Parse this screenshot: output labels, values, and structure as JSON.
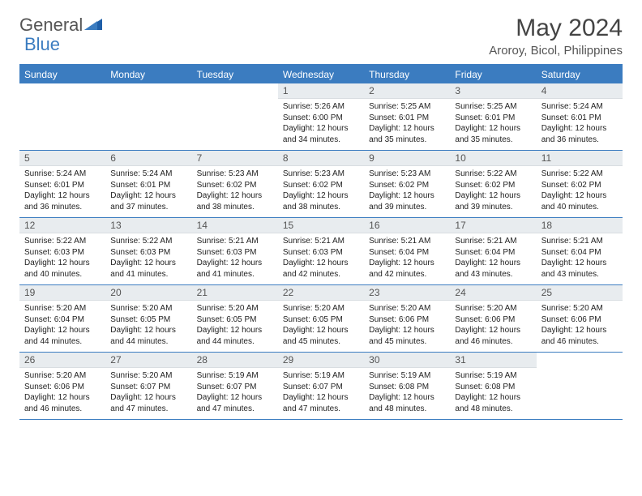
{
  "logo": {
    "text1": "General",
    "text2": "Blue"
  },
  "title": "May 2024",
  "location": "Aroroy, Bicol, Philippines",
  "weekdays": [
    "Sunday",
    "Monday",
    "Tuesday",
    "Wednesday",
    "Thursday",
    "Friday",
    "Saturday"
  ],
  "colors": {
    "accent": "#3b7cc0",
    "daynum_bg": "#e8ecef",
    "text": "#222222",
    "muted": "#555555",
    "white": "#ffffff"
  },
  "days": {
    "1": {
      "sunrise": "Sunrise: 5:26 AM",
      "sunset": "Sunset: 6:00 PM",
      "day1": "Daylight: 12 hours",
      "day2": "and 34 minutes."
    },
    "2": {
      "sunrise": "Sunrise: 5:25 AM",
      "sunset": "Sunset: 6:01 PM",
      "day1": "Daylight: 12 hours",
      "day2": "and 35 minutes."
    },
    "3": {
      "sunrise": "Sunrise: 5:25 AM",
      "sunset": "Sunset: 6:01 PM",
      "day1": "Daylight: 12 hours",
      "day2": "and 35 minutes."
    },
    "4": {
      "sunrise": "Sunrise: 5:24 AM",
      "sunset": "Sunset: 6:01 PM",
      "day1": "Daylight: 12 hours",
      "day2": "and 36 minutes."
    },
    "5": {
      "sunrise": "Sunrise: 5:24 AM",
      "sunset": "Sunset: 6:01 PM",
      "day1": "Daylight: 12 hours",
      "day2": "and 36 minutes."
    },
    "6": {
      "sunrise": "Sunrise: 5:24 AM",
      "sunset": "Sunset: 6:01 PM",
      "day1": "Daylight: 12 hours",
      "day2": "and 37 minutes."
    },
    "7": {
      "sunrise": "Sunrise: 5:23 AM",
      "sunset": "Sunset: 6:02 PM",
      "day1": "Daylight: 12 hours",
      "day2": "and 38 minutes."
    },
    "8": {
      "sunrise": "Sunrise: 5:23 AM",
      "sunset": "Sunset: 6:02 PM",
      "day1": "Daylight: 12 hours",
      "day2": "and 38 minutes."
    },
    "9": {
      "sunrise": "Sunrise: 5:23 AM",
      "sunset": "Sunset: 6:02 PM",
      "day1": "Daylight: 12 hours",
      "day2": "and 39 minutes."
    },
    "10": {
      "sunrise": "Sunrise: 5:22 AM",
      "sunset": "Sunset: 6:02 PM",
      "day1": "Daylight: 12 hours",
      "day2": "and 39 minutes."
    },
    "11": {
      "sunrise": "Sunrise: 5:22 AM",
      "sunset": "Sunset: 6:02 PM",
      "day1": "Daylight: 12 hours",
      "day2": "and 40 minutes."
    },
    "12": {
      "sunrise": "Sunrise: 5:22 AM",
      "sunset": "Sunset: 6:03 PM",
      "day1": "Daylight: 12 hours",
      "day2": "and 40 minutes."
    },
    "13": {
      "sunrise": "Sunrise: 5:22 AM",
      "sunset": "Sunset: 6:03 PM",
      "day1": "Daylight: 12 hours",
      "day2": "and 41 minutes."
    },
    "14": {
      "sunrise": "Sunrise: 5:21 AM",
      "sunset": "Sunset: 6:03 PM",
      "day1": "Daylight: 12 hours",
      "day2": "and 41 minutes."
    },
    "15": {
      "sunrise": "Sunrise: 5:21 AM",
      "sunset": "Sunset: 6:03 PM",
      "day1": "Daylight: 12 hours",
      "day2": "and 42 minutes."
    },
    "16": {
      "sunrise": "Sunrise: 5:21 AM",
      "sunset": "Sunset: 6:04 PM",
      "day1": "Daylight: 12 hours",
      "day2": "and 42 minutes."
    },
    "17": {
      "sunrise": "Sunrise: 5:21 AM",
      "sunset": "Sunset: 6:04 PM",
      "day1": "Daylight: 12 hours",
      "day2": "and 43 minutes."
    },
    "18": {
      "sunrise": "Sunrise: 5:21 AM",
      "sunset": "Sunset: 6:04 PM",
      "day1": "Daylight: 12 hours",
      "day2": "and 43 minutes."
    },
    "19": {
      "sunrise": "Sunrise: 5:20 AM",
      "sunset": "Sunset: 6:04 PM",
      "day1": "Daylight: 12 hours",
      "day2": "and 44 minutes."
    },
    "20": {
      "sunrise": "Sunrise: 5:20 AM",
      "sunset": "Sunset: 6:05 PM",
      "day1": "Daylight: 12 hours",
      "day2": "and 44 minutes."
    },
    "21": {
      "sunrise": "Sunrise: 5:20 AM",
      "sunset": "Sunset: 6:05 PM",
      "day1": "Daylight: 12 hours",
      "day2": "and 44 minutes."
    },
    "22": {
      "sunrise": "Sunrise: 5:20 AM",
      "sunset": "Sunset: 6:05 PM",
      "day1": "Daylight: 12 hours",
      "day2": "and 45 minutes."
    },
    "23": {
      "sunrise": "Sunrise: 5:20 AM",
      "sunset": "Sunset: 6:06 PM",
      "day1": "Daylight: 12 hours",
      "day2": "and 45 minutes."
    },
    "24": {
      "sunrise": "Sunrise: 5:20 AM",
      "sunset": "Sunset: 6:06 PM",
      "day1": "Daylight: 12 hours",
      "day2": "and 46 minutes."
    },
    "25": {
      "sunrise": "Sunrise: 5:20 AM",
      "sunset": "Sunset: 6:06 PM",
      "day1": "Daylight: 12 hours",
      "day2": "and 46 minutes."
    },
    "26": {
      "sunrise": "Sunrise: 5:20 AM",
      "sunset": "Sunset: 6:06 PM",
      "day1": "Daylight: 12 hours",
      "day2": "and 46 minutes."
    },
    "27": {
      "sunrise": "Sunrise: 5:20 AM",
      "sunset": "Sunset: 6:07 PM",
      "day1": "Daylight: 12 hours",
      "day2": "and 47 minutes."
    },
    "28": {
      "sunrise": "Sunrise: 5:19 AM",
      "sunset": "Sunset: 6:07 PM",
      "day1": "Daylight: 12 hours",
      "day2": "and 47 minutes."
    },
    "29": {
      "sunrise": "Sunrise: 5:19 AM",
      "sunset": "Sunset: 6:07 PM",
      "day1": "Daylight: 12 hours",
      "day2": "and 47 minutes."
    },
    "30": {
      "sunrise": "Sunrise: 5:19 AM",
      "sunset": "Sunset: 6:08 PM",
      "day1": "Daylight: 12 hours",
      "day2": "and 48 minutes."
    },
    "31": {
      "sunrise": "Sunrise: 5:19 AM",
      "sunset": "Sunset: 6:08 PM",
      "day1": "Daylight: 12 hours",
      "day2": "and 48 minutes."
    }
  },
  "layout": {
    "first_weekday_index": 3,
    "num_days": 31,
    "columns": 7
  }
}
